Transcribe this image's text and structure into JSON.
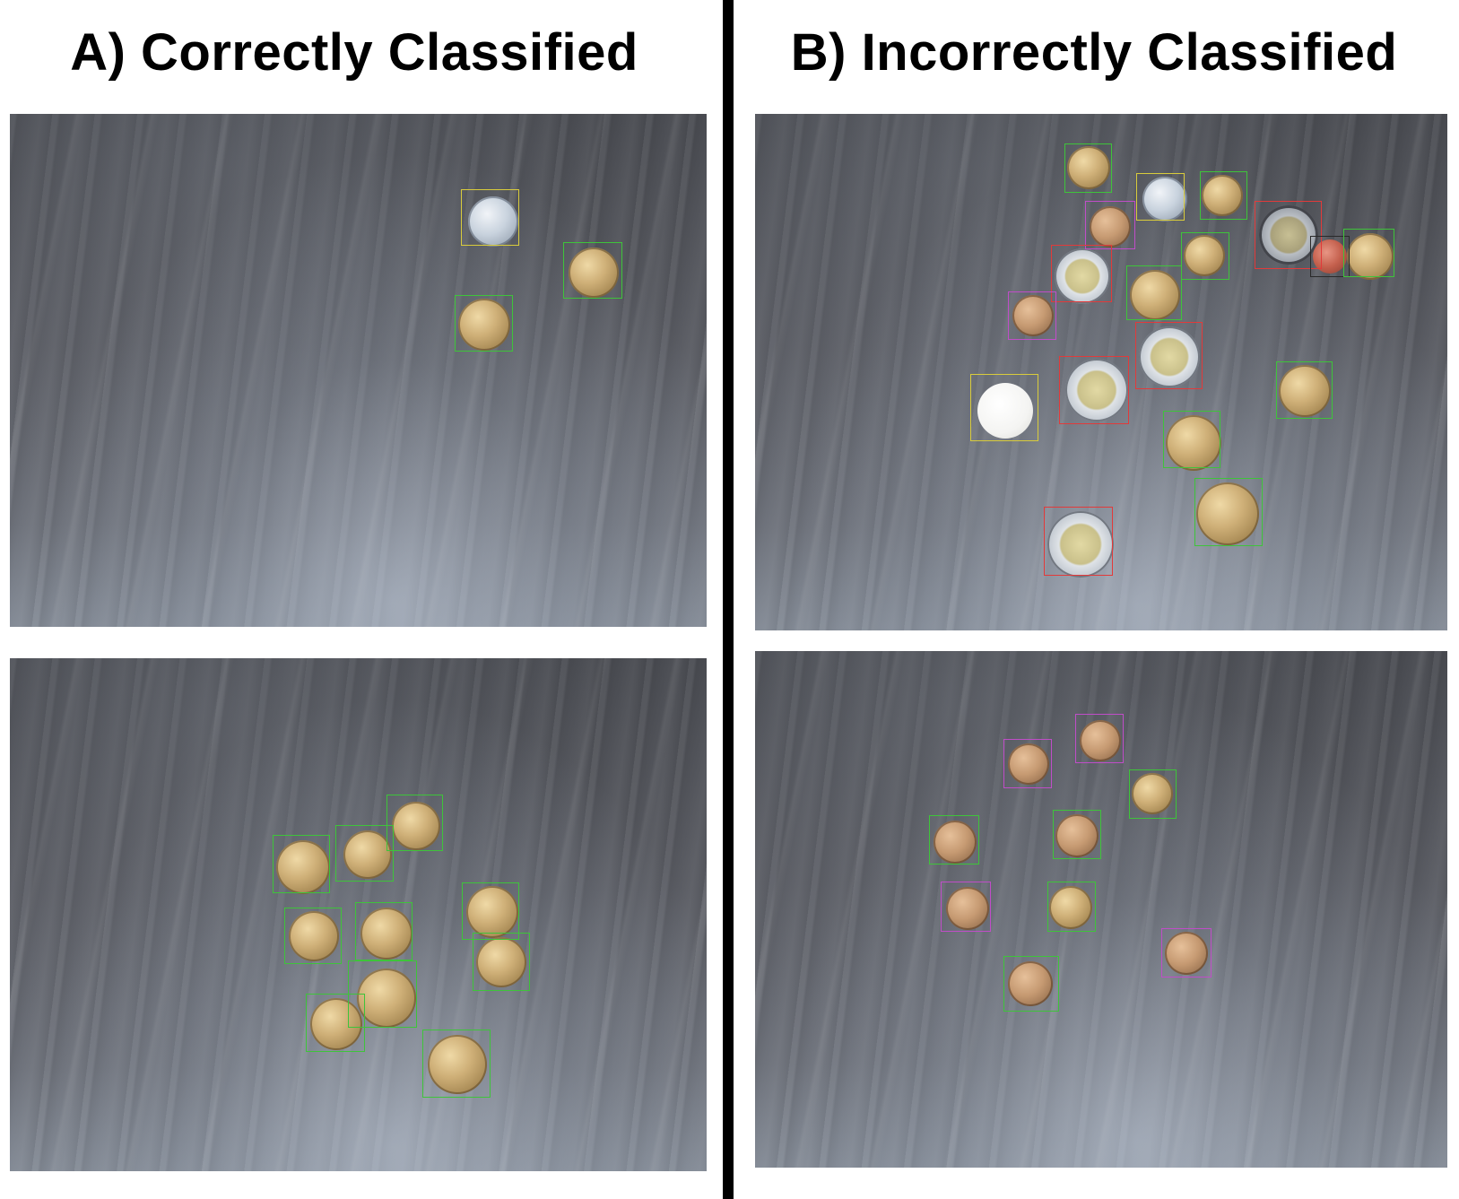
{
  "panel_a": {
    "title": "A) Correctly Classified"
  },
  "panel_b": {
    "title": "B) Incorrectly Classified"
  },
  "box_colors": {
    "green": "#3ec43a",
    "yellow": "#d9cc3c",
    "red": "#e23a3a",
    "magenta": "#c04dc8",
    "black": "#2a2a2a"
  },
  "background": "#ffffff",
  "divider_color": "#000000"
}
